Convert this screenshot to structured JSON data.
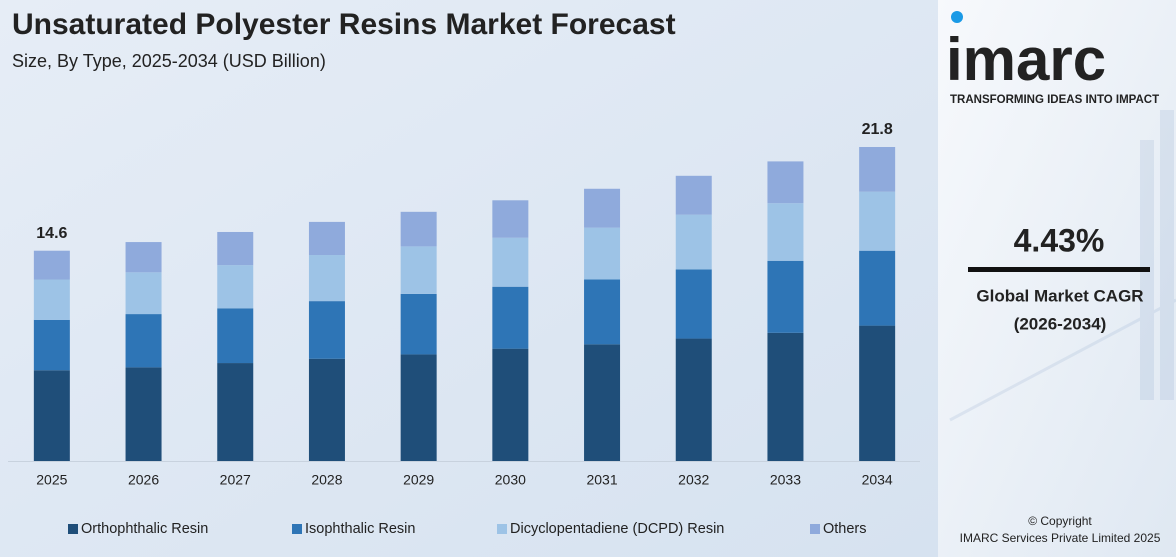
{
  "chart_data": {
    "type": "stacked_bar",
    "title": "Unsaturated Polyester Resins Market Forecast",
    "subtitle": "Size, By Type, 2025-2034 (USD Billion)",
    "categories": [
      "2025",
      "2026",
      "2027",
      "2028",
      "2029",
      "2030",
      "2031",
      "2032",
      "2033",
      "2034"
    ],
    "series": [
      {
        "name": "Orthophthalic Resin",
        "color": "#1f4e79",
        "values": [
          6.3,
          6.5,
          6.8,
          7.1,
          7.4,
          7.8,
          8.1,
          8.5,
          8.9,
          9.4
        ]
      },
      {
        "name": "Isophthalic Resin",
        "color": "#2e75b6",
        "values": [
          3.5,
          3.7,
          3.8,
          4.0,
          4.2,
          4.3,
          4.5,
          4.8,
          5.0,
          5.2
        ]
      },
      {
        "name": "Dicyclopentadiene (DCPD) Resin",
        "color": "#9dc3e6",
        "values": [
          2.8,
          2.9,
          3.0,
          3.2,
          3.3,
          3.4,
          3.6,
          3.8,
          4.0,
          4.1
        ]
      },
      {
        "name": "Others",
        "color": "#8faadc",
        "values": [
          2.0,
          2.1,
          2.3,
          2.3,
          2.4,
          2.6,
          2.7,
          2.7,
          2.9,
          3.1
        ]
      }
    ],
    "total_labels": [
      {
        "category": "2025",
        "value": 14.6
      },
      {
        "category": "2034",
        "value": 21.8
      }
    ],
    "legend": "bottom"
  },
  "sidebar": {
    "logo": "imarc",
    "tagline": "TRANSFORMING IDEAS INTO IMPACT",
    "cagr": "4.43%",
    "cagr_label": "Global Market CAGR",
    "cagr_period": "(2026-2034)",
    "copyright": "© Copyright",
    "company": "IMARC Services Private Limited 2025"
  }
}
